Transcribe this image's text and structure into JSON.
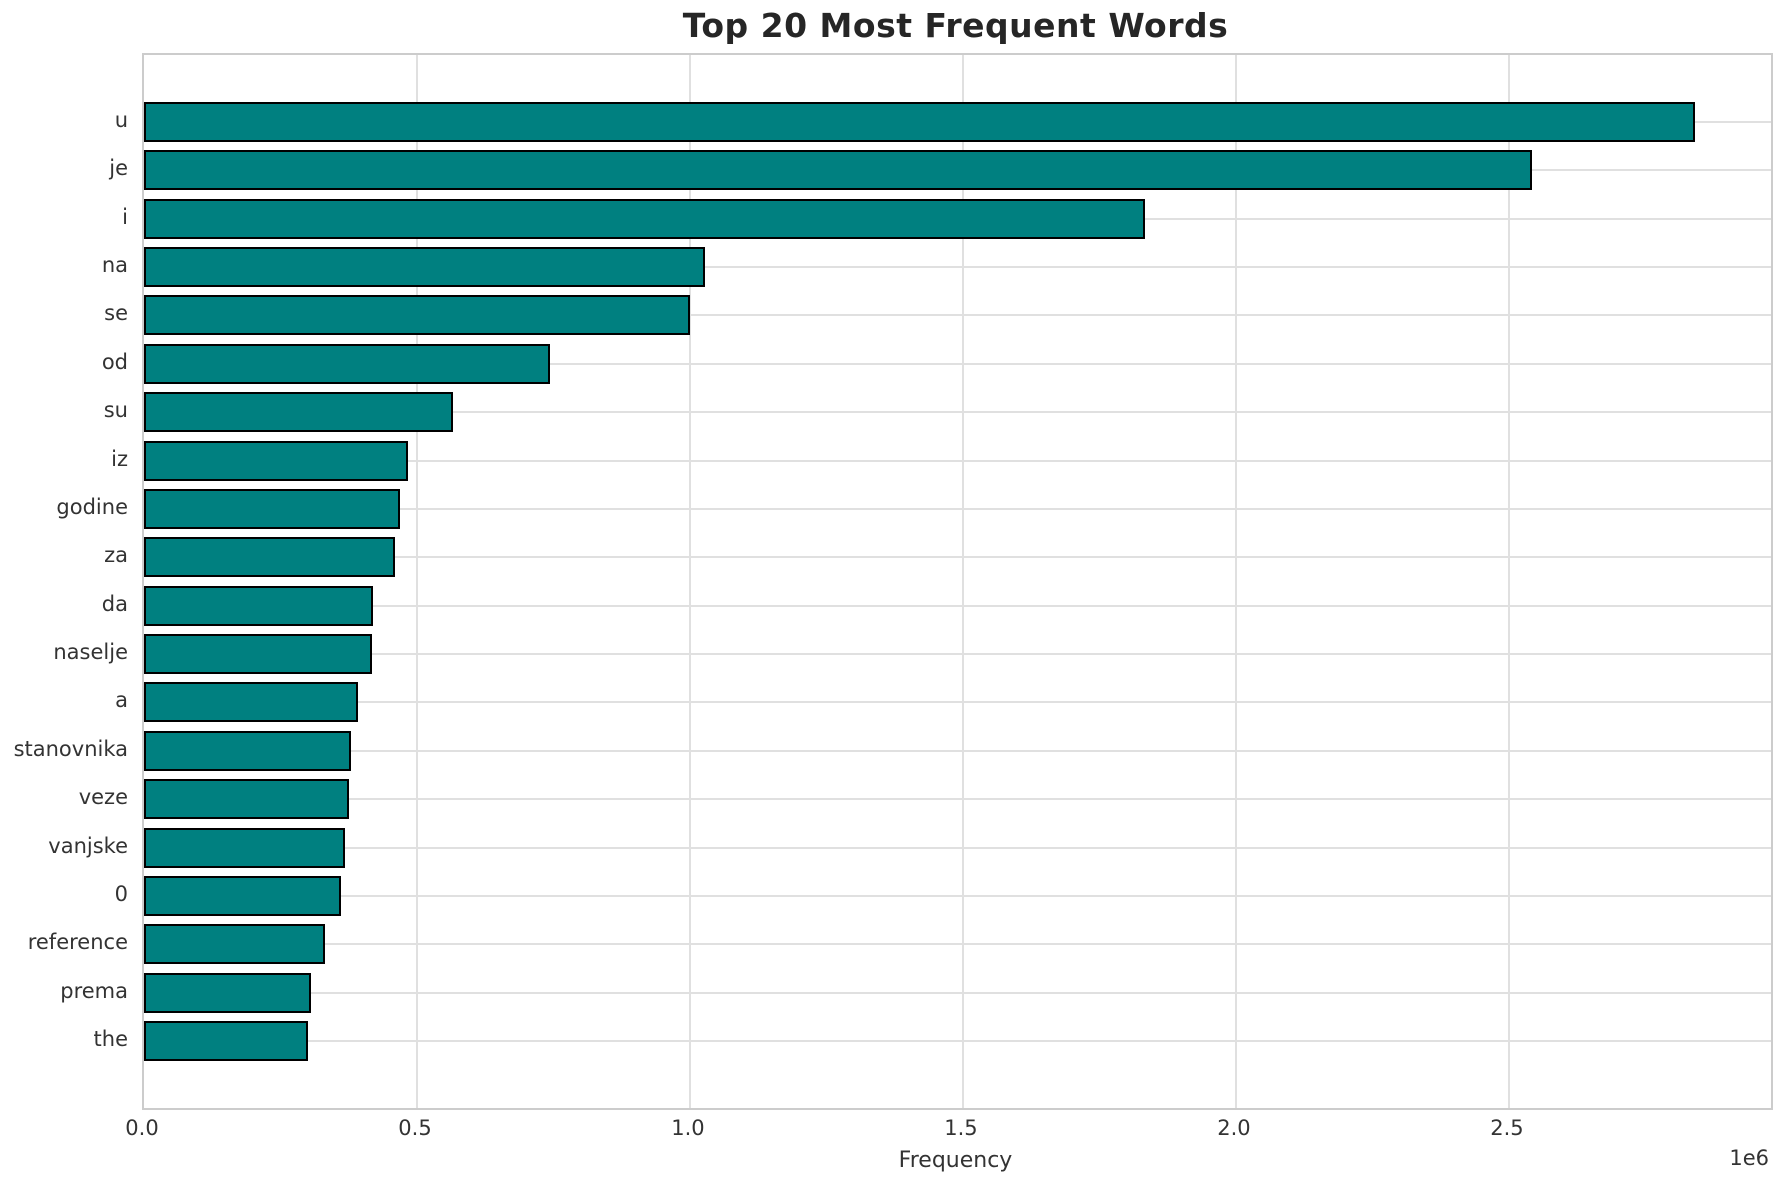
{
  "title": "Top 20 Most Frequent Words",
  "chart_data": {
    "type": "bar",
    "orientation": "horizontal",
    "title": "Top 20 Most Frequent Words",
    "xlabel": "Frequency",
    "ylabel": "",
    "categories": [
      "u",
      "je",
      "i",
      "na",
      "se",
      "od",
      "su",
      "iz",
      "godine",
      "za",
      "da",
      "naselje",
      "a",
      "stanovnika",
      "veze",
      "vanjske",
      "0",
      "reference",
      "prema",
      "the"
    ],
    "values": [
      2841000,
      2542000,
      1833000,
      1027000,
      1000000,
      744000,
      566000,
      483000,
      469000,
      460000,
      419000,
      417000,
      392000,
      379000,
      375000,
      368000,
      361000,
      332000,
      306000,
      300000
    ],
    "xlim": [
      0,
      2980000
    ],
    "x_ticks": [
      0,
      500000,
      1000000,
      1500000,
      2000000,
      2500000
    ],
    "x_tick_labels": [
      "0.0",
      "0.5",
      "1.0",
      "1.5",
      "2.0",
      "2.5"
    ],
    "offset_text": "1e6",
    "grid": true,
    "legend": false,
    "bar_color": "#008080",
    "bar_edge_color": "#000000",
    "grid_color": "#e0e0e0",
    "spine_color": "#cccccc",
    "title_color": "#262626",
    "tick_label_color": "#333333"
  }
}
